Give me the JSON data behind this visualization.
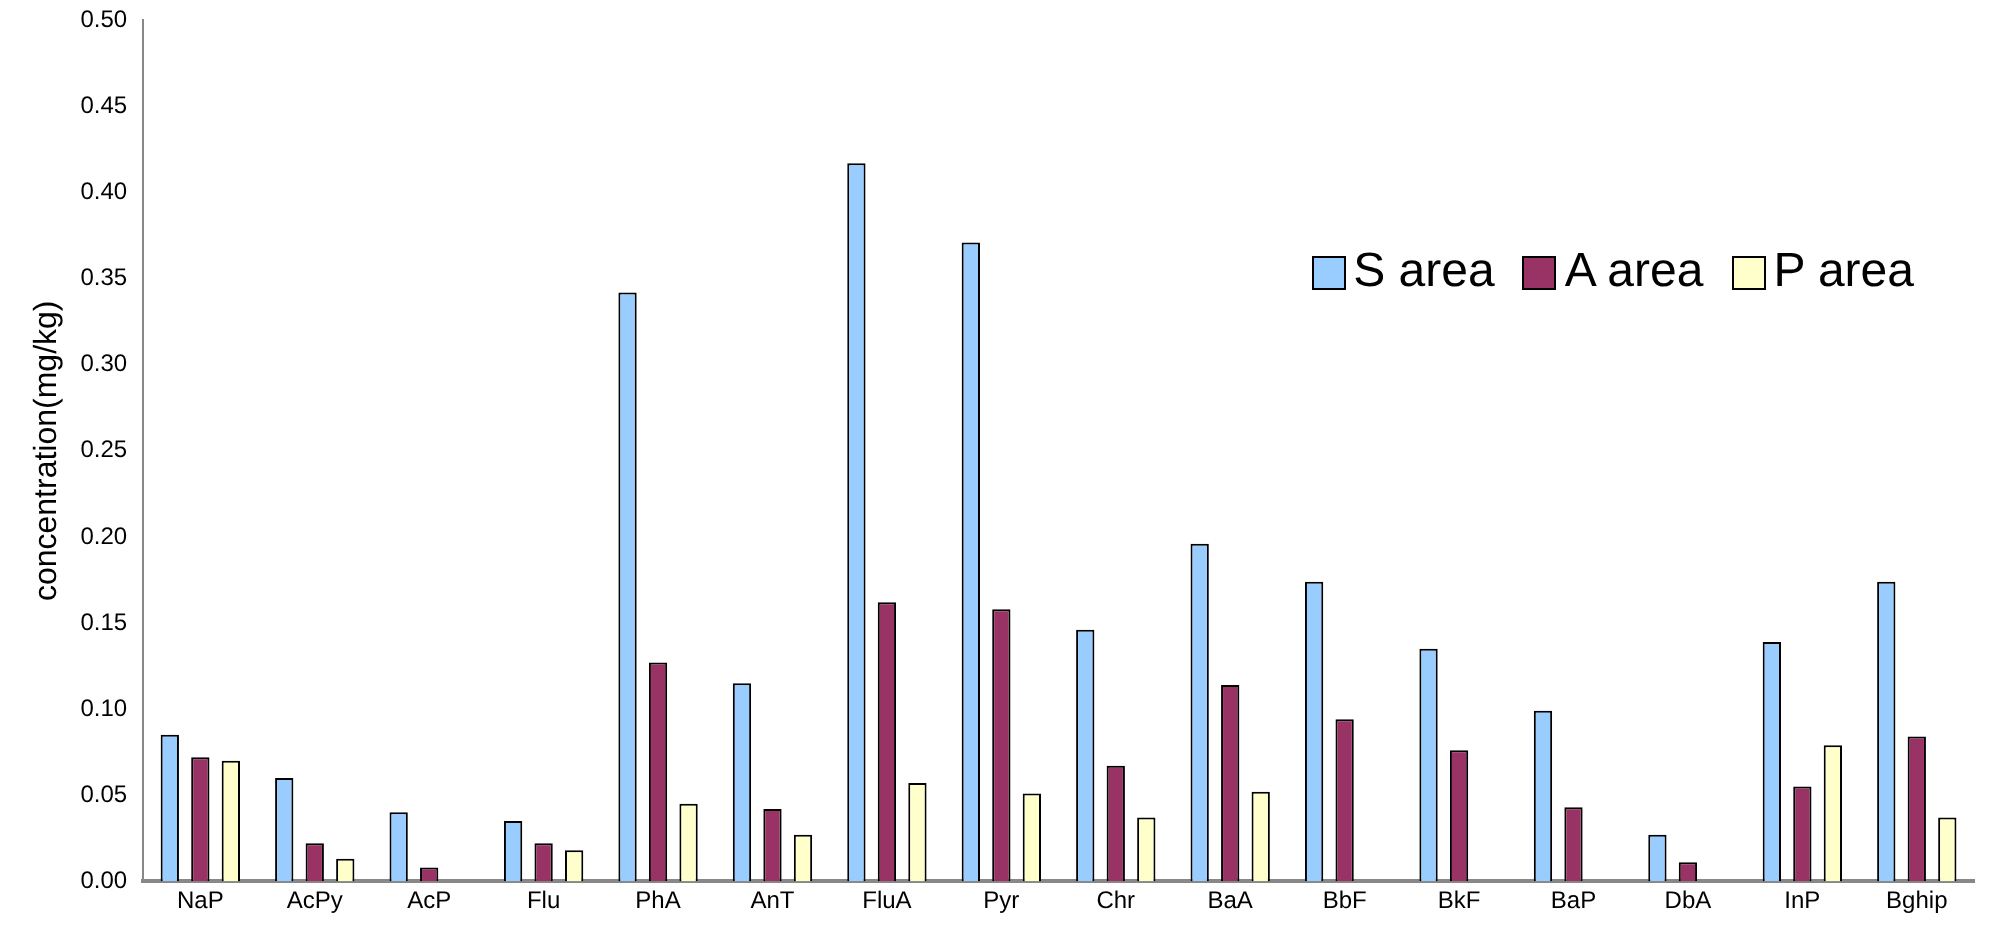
{
  "chart_data": {
    "type": "bar",
    "ylabel": "concentration(mg/kg)",
    "categories": [
      "NaP",
      "AcPy",
      "AcP",
      "Flu",
      "PhA",
      "AnT",
      "FluA",
      "Pyr",
      "Chr",
      "BaA",
      "BbF",
      "BkF",
      "BaP",
      "DbA",
      "InP",
      "Bghip"
    ],
    "series": [
      {
        "name": "S area",
        "color": "#99ccff",
        "values": [
          0.085,
          0.06,
          0.04,
          0.035,
          0.342,
          0.115,
          0.417,
          0.371,
          0.146,
          0.196,
          0.174,
          0.135,
          0.099,
          0.027,
          0.139,
          0.174
        ]
      },
      {
        "name": "A area",
        "color": "#993366",
        "values": [
          0.072,
          0.022,
          0.008,
          0.022,
          0.127,
          0.042,
          0.162,
          0.158,
          0.067,
          0.114,
          0.094,
          0.076,
          0.043,
          0.011,
          0.055,
          0.084
        ]
      },
      {
        "name": "P area",
        "color": "#ffffcc",
        "values": [
          0.07,
          0.013,
          0,
          0.018,
          0.045,
          0.027,
          0.057,
          0.051,
          0.037,
          0.052,
          0,
          0,
          0,
          0,
          0.079,
          0.037
        ]
      }
    ],
    "ylim": [
      0,
      0.5
    ],
    "yticks": [
      {
        "value": 0,
        "label": "0.00"
      },
      {
        "value": 0.05,
        "label": "0.05"
      },
      {
        "value": 0.1,
        "label": "0.10"
      },
      {
        "value": 0.15,
        "label": "0.15"
      },
      {
        "value": 0.2,
        "label": "0.20"
      },
      {
        "value": 0.25,
        "label": "0.25"
      },
      {
        "value": 0.3,
        "label": "0.30"
      },
      {
        "value": 0.35,
        "label": "0.35"
      },
      {
        "value": 0.4,
        "label": "0.40"
      },
      {
        "value": 0.45,
        "label": "0.45"
      },
      {
        "value": 0.5,
        "label": "0.50"
      }
    ],
    "grid": false,
    "legend": "right"
  }
}
